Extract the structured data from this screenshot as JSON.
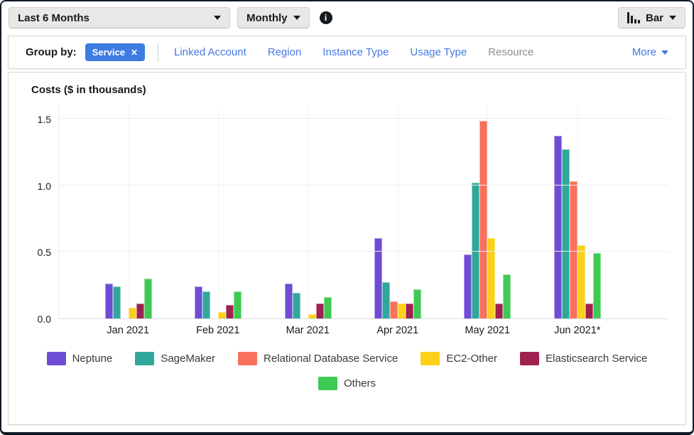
{
  "toolbar": {
    "time_range": "Last 6 Months",
    "granularity": "Monthly",
    "chart_type": "Bar"
  },
  "icons": {
    "close": "✕",
    "info": "i"
  },
  "group_by": {
    "label": "Group by:",
    "chip": "Service",
    "links": [
      "Linked Account",
      "Region",
      "Instance Type",
      "Usage Type"
    ],
    "disabled_link": "Resource",
    "more": "More"
  },
  "chart_data": {
    "type": "bar",
    "title": "Costs ($ in thousands)",
    "categories": [
      "Jan 2021",
      "Feb 2021",
      "Mar 2021",
      "Apr 2021",
      "May 2021",
      "Jun 2021*"
    ],
    "series": [
      {
        "name": "Neptune",
        "color": "#6e4cd5",
        "values": [
          0.26,
          0.24,
          0.26,
          0.6,
          0.48,
          1.37
        ]
      },
      {
        "name": "SageMaker",
        "color": "#2fa89b",
        "values": [
          0.24,
          0.2,
          0.19,
          0.27,
          1.02,
          1.27
        ]
      },
      {
        "name": "Relational Database Service",
        "color": "#f9705c",
        "values": [
          0.0,
          0.0,
          0.0,
          0.13,
          1.48,
          1.03
        ]
      },
      {
        "name": "EC2-Other",
        "color": "#fdd019",
        "values": [
          0.08,
          0.05,
          0.03,
          0.11,
          0.6,
          0.55
        ]
      },
      {
        "name": "Elasticsearch Service",
        "color": "#9e2150",
        "values": [
          0.11,
          0.1,
          0.11,
          0.11,
          0.11,
          0.11
        ]
      },
      {
        "name": "Others",
        "color": "#3ec953",
        "values": [
          0.3,
          0.2,
          0.16,
          0.22,
          0.33,
          0.49
        ]
      }
    ],
    "y_ticks": [
      0.0,
      0.5,
      1.0,
      1.5
    ],
    "ylim": [
      0,
      1.6
    ],
    "grid": true,
    "legend_position": "bottom",
    "legend_rows": [
      5,
      1
    ]
  }
}
